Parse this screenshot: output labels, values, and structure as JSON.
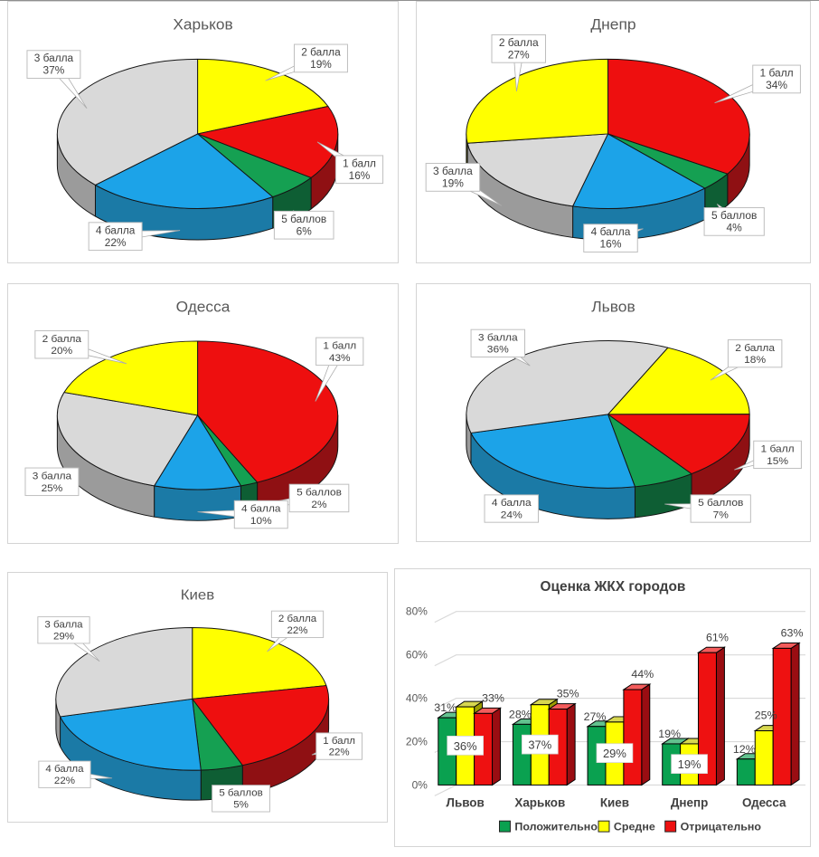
{
  "chart_data": [
    {
      "type": "pie",
      "title": "Харьков",
      "start_angle": 0,
      "slices": [
        {
          "label": "2 балла",
          "pct": 19,
          "color": "score2",
          "box": [
            350,
            65
          ]
        },
        {
          "label": "1 балл",
          "pct": 16,
          "color": "score1",
          "box": [
            393,
            193
          ]
        },
        {
          "label": "5 баллов",
          "pct": 6,
          "color": "score5",
          "box": [
            331,
            257
          ]
        },
        {
          "label": "4 балла",
          "pct": 22,
          "color": "score4",
          "box": [
            120,
            270
          ]
        },
        {
          "label": "3 балла",
          "pct": 37,
          "color": "score3",
          "box": [
            51,
            72
          ]
        }
      ]
    },
    {
      "type": "pie",
      "title": "Днепр",
      "start_angle": 0,
      "slices": [
        {
          "label": "1 балл",
          "pct": 34,
          "color": "score1",
          "box": [
            399,
            89
          ]
        },
        {
          "label": "5 баллов",
          "pct": 4,
          "color": "score5",
          "box": [
            352,
            253
          ]
        },
        {
          "label": "4 балла",
          "pct": 16,
          "color": "score4",
          "box": [
            215,
            272
          ]
        },
        {
          "label": "3 балла",
          "pct": 19,
          "color": "score3",
          "box": [
            40,
            202
          ]
        },
        {
          "label": "2 балла",
          "pct": 27,
          "color": "score2",
          "box": [
            113,
            54
          ]
        }
      ]
    },
    {
      "type": "pie",
      "title": "Одесса",
      "start_angle": 0,
      "slices": [
        {
          "label": "1 балл",
          "pct": 43,
          "color": "score1",
          "box": [
            371,
            78
          ]
        },
        {
          "label": "5 баллов",
          "pct": 2,
          "color": "score5",
          "box": [
            348,
            248
          ]
        },
        {
          "label": "4 балла",
          "pct": 10,
          "color": "score4",
          "box": [
            283,
            267
          ]
        },
        {
          "label": "3 балла",
          "pct": 25,
          "color": "score3",
          "box": [
            49,
            229
          ]
        },
        {
          "label": "2 балла",
          "pct": 20,
          "color": "score2",
          "box": [
            60,
            70
          ]
        }
      ]
    },
    {
      "type": "pie",
      "title": "Львов",
      "start_angle": 25,
      "slices": [
        {
          "label": "2 балла",
          "pct": 18,
          "color": "score2",
          "box": [
            375,
            81
          ]
        },
        {
          "label": "1 балл",
          "pct": 15,
          "color": "score1",
          "box": [
            400,
            199
          ]
        },
        {
          "label": "5 баллов",
          "pct": 7,
          "color": "score5",
          "box": [
            337,
            262
          ]
        },
        {
          "label": "4 балла",
          "pct": 24,
          "color": "score4",
          "box": [
            105,
            262
          ]
        },
        {
          "label": "3 балла",
          "pct": 36,
          "color": "score3",
          "box": [
            90,
            69
          ]
        }
      ]
    },
    {
      "type": "pie",
      "title": "Киев",
      "start_angle": 0,
      "slices": [
        {
          "label": "2 балла",
          "pct": 22,
          "color": "score2",
          "box": [
            333,
            62
          ]
        },
        {
          "label": "1 балл",
          "pct": 22,
          "color": "score1",
          "box": [
            381,
            209
          ]
        },
        {
          "label": "5 баллов",
          "pct": 5,
          "color": "score5",
          "box": [
            268,
            272
          ]
        },
        {
          "label": "4 балла",
          "pct": 22,
          "color": "score4",
          "box": [
            65,
            243
          ]
        },
        {
          "label": "3 балла",
          "pct": 29,
          "color": "score3",
          "box": [
            64,
            69
          ]
        }
      ]
    },
    {
      "type": "bar",
      "title": "Оценка ЖКХ городов",
      "categories": [
        "Львов",
        "Харьков",
        "Киев",
        "Днепр",
        "Одесса"
      ],
      "series": [
        {
          "name": "Положительно",
          "color": "pos",
          "values": [
            31,
            28,
            27,
            19,
            12
          ]
        },
        {
          "name": "Средне",
          "color": "mid",
          "values": [
            36,
            37,
            29,
            19,
            25
          ]
        },
        {
          "name": "Отрицательно",
          "color": "neg",
          "values": [
            33,
            35,
            44,
            61,
            63
          ]
        }
      ],
      "y_ticks": [
        "0%",
        "20%",
        "40%",
        "60%",
        "80%"
      ],
      "ylim": [
        0,
        80
      ],
      "grid": true,
      "legend_position": "bottom",
      "label_suffix": "%"
    }
  ],
  "palette": {
    "pie": {
      "score1": {
        "top": "#ee0f0f",
        "side": "#8f1013"
      },
      "score2": {
        "top": "#ffff00",
        "side": "#b0b000"
      },
      "score3": {
        "top": "#d9d9d9",
        "side": "#9b9b9b"
      },
      "score4": {
        "top": "#1ca3e8",
        "side": "#1b7aa6"
      },
      "score5": {
        "top": "#15a052",
        "side": "#0e5e34"
      }
    },
    "bar": {
      "pos": {
        "front": "#0aa150",
        "top": "#62c28e",
        "side": "#05693a"
      },
      "mid": {
        "front": "#ffff00",
        "top": "#d7d750",
        "side": "#9c9c00"
      },
      "neg": {
        "front": "#ee1111",
        "top": "#f45c5c",
        "side": "#9a0d12"
      }
    },
    "text": {
      "title": "#595959",
      "label": "#404040",
      "axis": "#595959"
    },
    "grid_line": "#d9d9d9",
    "panel_border": "#d4d4d4"
  }
}
